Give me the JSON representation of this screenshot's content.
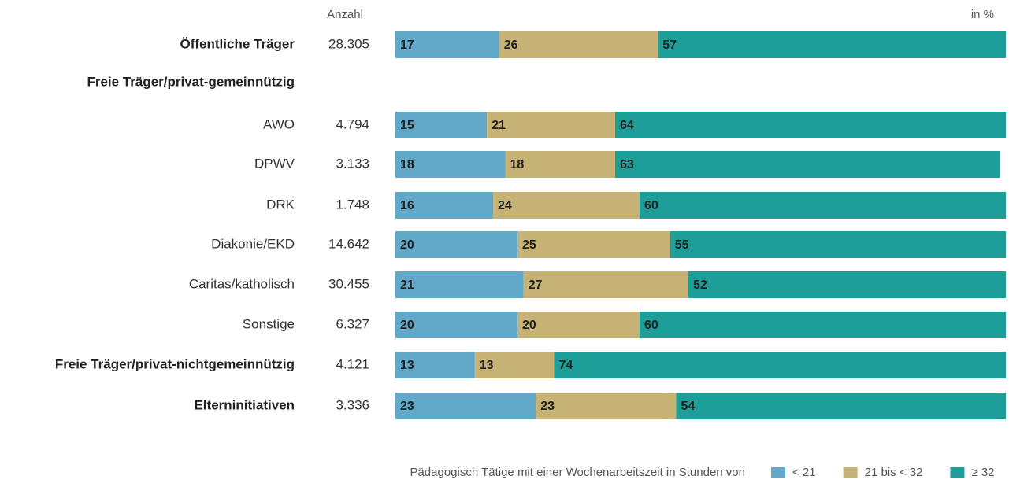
{
  "chart_data": {
    "type": "bar",
    "stacked": true,
    "orientation": "horizontal",
    "xlim": [
      0,
      100
    ],
    "unit_label": "in %",
    "legend_title": "Pädagogisch Tätige mit einer Wochenarbeitszeit in Stunden von",
    "categories": [
      "Öffentliche Träger",
      "Freie Träger/privat-gemeinnützig",
      "AWO",
      "DPWV",
      "DRK",
      "Diakonie/EKD",
      "Caritas/katholisch",
      "Sonstige",
      "Freie Träger/privat-nichtgemeinnützig",
      "Elterninitiativen"
    ],
    "bold": [
      true,
      true,
      false,
      false,
      false,
      false,
      false,
      false,
      true,
      true
    ],
    "counts": {
      "name": "Anzahl",
      "values": [
        28305,
        null,
        4794,
        3133,
        1748,
        14642,
        30455,
        6327,
        4121,
        3336
      ],
      "value_labels": [
        "28.305",
        null,
        "4.794",
        "3.133",
        "1.748",
        "14.642",
        "30.455",
        "6.327",
        "4.121",
        "3.336"
      ]
    },
    "series": [
      {
        "name": "< 21",
        "color": "#62a8c9",
        "values": [
          17,
          null,
          15,
          18,
          16,
          20,
          21,
          20,
          13,
          23
        ]
      },
      {
        "name": "21 bis < 32",
        "color": "#c6b275",
        "values": [
          26,
          null,
          21,
          18,
          24,
          25,
          27,
          20,
          13,
          23
        ]
      },
      {
        "name": "≥ 32",
        "color": "#1e9e98",
        "values": [
          57,
          null,
          64,
          63,
          60,
          55,
          52,
          60,
          74,
          54
        ]
      }
    ]
  }
}
